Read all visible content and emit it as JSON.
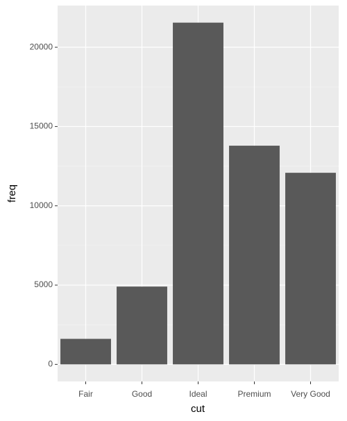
{
  "chart_data": {
    "type": "bar",
    "x_label": "cut",
    "y_label": "freq",
    "categories": [
      "Fair",
      "Good",
      "Ideal",
      "Premium",
      "Very Good"
    ],
    "values": [
      1610,
      4906,
      21551,
      13791,
      12082
    ],
    "color": "#595959",
    "ylim": [
      -1078,
      22629
    ],
    "yticks": [
      0,
      5000,
      10000,
      15000,
      20000
    ],
    "grid": true
  }
}
